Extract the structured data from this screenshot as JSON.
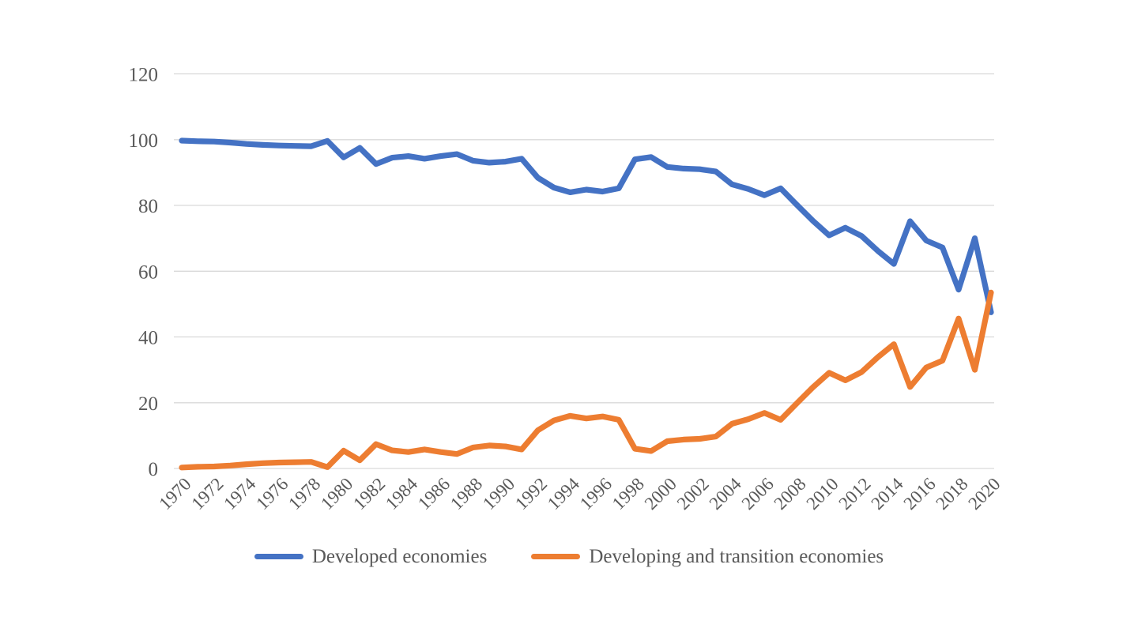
{
  "chart_data": {
    "type": "line",
    "title": "",
    "xlabel": "",
    "ylabel": "",
    "x": [
      1970,
      1971,
      1972,
      1973,
      1974,
      1975,
      1976,
      1977,
      1978,
      1979,
      1980,
      1981,
      1982,
      1983,
      1984,
      1985,
      1986,
      1987,
      1988,
      1989,
      1990,
      1991,
      1992,
      1993,
      1994,
      1995,
      1996,
      1997,
      1998,
      1999,
      2000,
      2001,
      2002,
      2003,
      2004,
      2005,
      2006,
      2007,
      2008,
      2009,
      2010,
      2011,
      2012,
      2013,
      2014,
      2015,
      2016,
      2017,
      2018,
      2019,
      2020
    ],
    "x_tick_labels": [
      "1970",
      "1972",
      "1974",
      "1976",
      "1978",
      "1980",
      "1982",
      "1984",
      "1986",
      "1988",
      "1990",
      "1992",
      "1994",
      "1996",
      "1998",
      "2000",
      "2002",
      "2004",
      "2006",
      "2008",
      "2010",
      "2012",
      "2014",
      "2016",
      "2018",
      "2020"
    ],
    "series": [
      {
        "id": "developed",
        "name": "Developed economies",
        "color": "#4472C4",
        "values": [
          99.7,
          99.5,
          99.4,
          99.1,
          98.7,
          98.4,
          98.2,
          98.1,
          98.0,
          99.6,
          94.6,
          97.5,
          92.6,
          94.5,
          95.0,
          94.2,
          95.0,
          95.6,
          93.6,
          93.0,
          93.3,
          94.2,
          88.4,
          85.4,
          84.0,
          84.8,
          84.2,
          85.2,
          94.0,
          94.7,
          91.7,
          91.2,
          91.0,
          90.3,
          86.4,
          85.0,
          83.1,
          85.2,
          80.2,
          75.3,
          70.9,
          73.2,
          70.7,
          66.2,
          62.2,
          75.2,
          69.3,
          67.2,
          54.4,
          70.0,
          47.5
        ]
      },
      {
        "id": "developing-transition",
        "name": "Developing and transition economies",
        "color": "#ED7D31",
        "values": [
          0.3,
          0.5,
          0.6,
          0.9,
          1.3,
          1.6,
          1.8,
          1.9,
          2.0,
          0.4,
          5.4,
          2.5,
          7.4,
          5.5,
          5.0,
          5.8,
          5.0,
          4.4,
          6.4,
          7.0,
          6.7,
          5.8,
          11.6,
          14.6,
          16.0,
          15.2,
          15.8,
          14.8,
          6.0,
          5.3,
          8.3,
          8.8,
          9.0,
          9.7,
          13.6,
          15.0,
          16.9,
          14.8,
          19.8,
          24.7,
          29.1,
          26.8,
          29.3,
          33.8,
          37.8,
          24.8,
          30.7,
          32.8,
          45.6,
          30.0,
          53.5
        ]
      }
    ],
    "yticks": [
      0,
      20,
      40,
      60,
      80,
      100,
      120
    ],
    "ylim": [
      0,
      120
    ],
    "x_tick_step": 2,
    "grid": true,
    "legend_position": "bottom",
    "colors": {
      "gridline": "#D9D9D9",
      "axis_text": "#595959",
      "background": "#FFFFFF"
    }
  }
}
